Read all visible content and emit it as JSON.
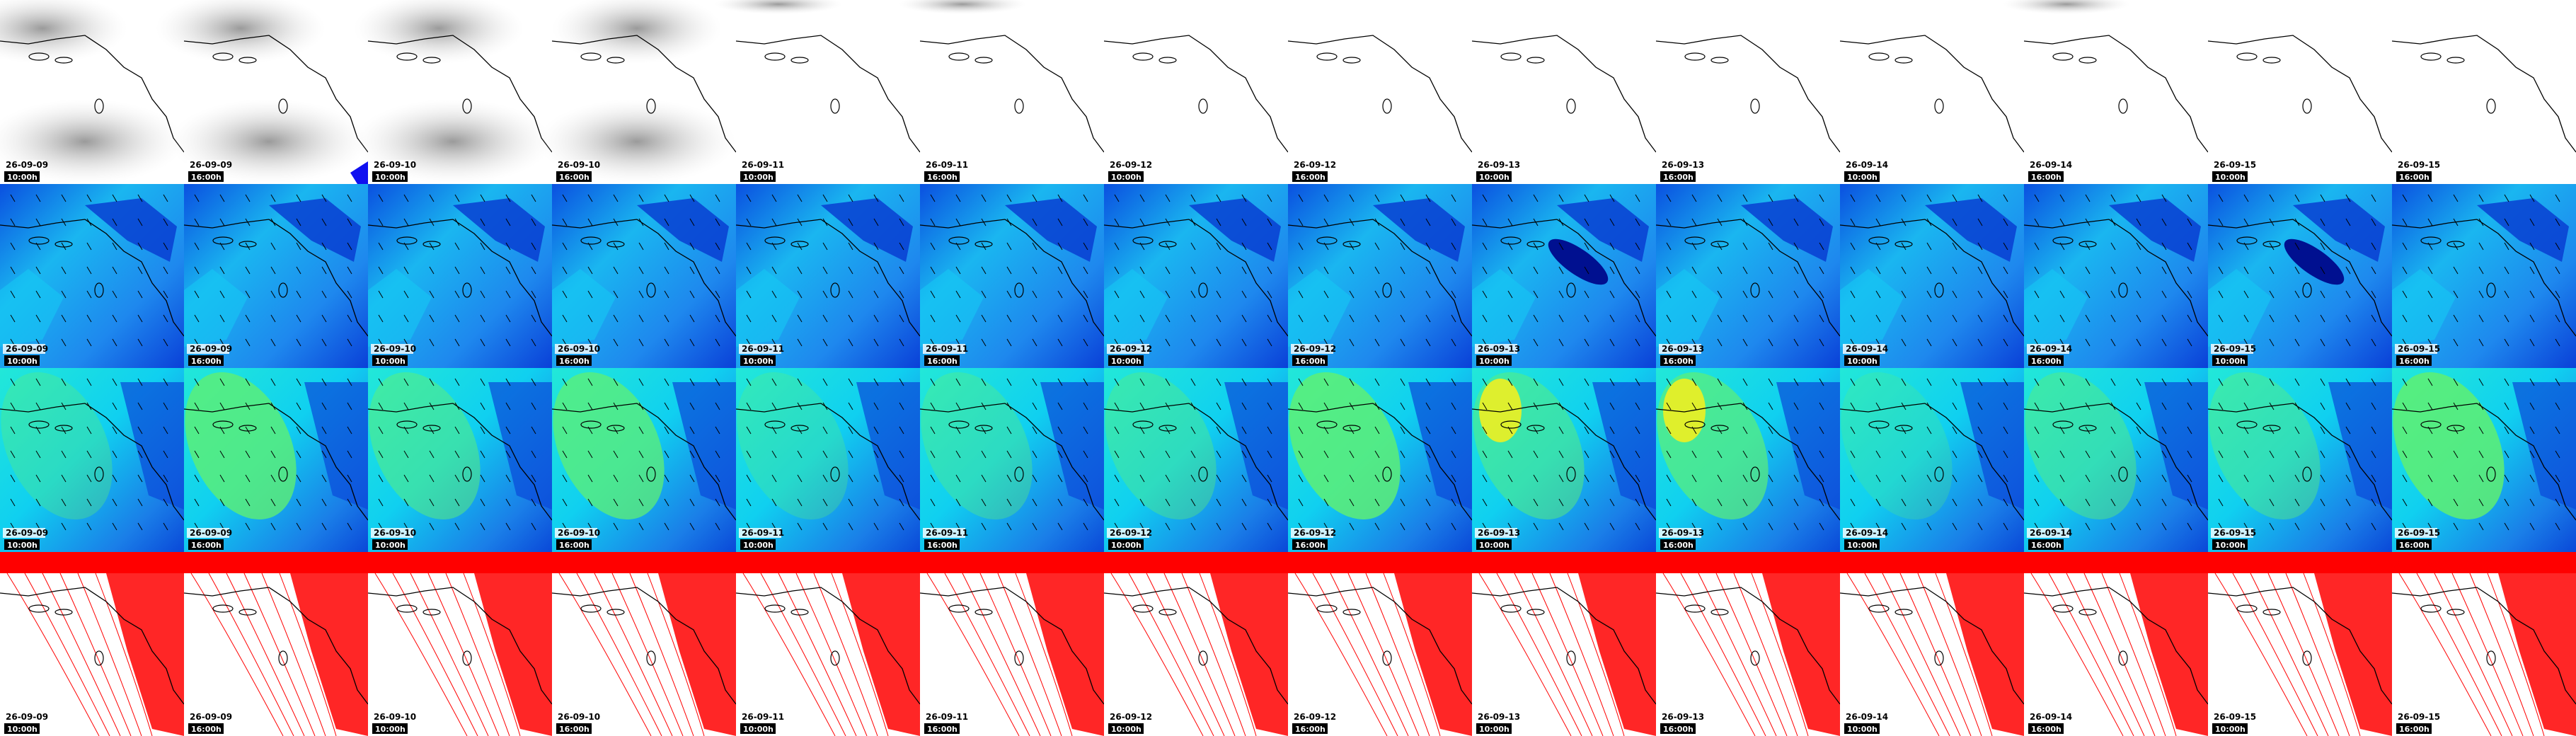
{
  "tiles": {
    "columns": [
      {
        "date": "26-09-09",
        "time": "10:00h"
      },
      {
        "date": "26-09-09",
        "time": "16:00h"
      },
      {
        "date": "26-09-10",
        "time": "10:00h"
      },
      {
        "date": "26-09-10",
        "time": "16:00h"
      },
      {
        "date": "26-09-11",
        "time": "10:00h"
      },
      {
        "date": "26-09-11",
        "time": "16:00h"
      },
      {
        "date": "26-09-12",
        "time": "10:00h"
      },
      {
        "date": "26-09-12",
        "time": "16:00h"
      },
      {
        "date": "26-09-13",
        "time": "10:00h"
      },
      {
        "date": "26-09-13",
        "time": "16:00h"
      },
      {
        "date": "26-09-14",
        "time": "10:00h"
      },
      {
        "date": "26-09-14",
        "time": "16:00h"
      },
      {
        "date": "26-09-15",
        "time": "10:00h"
      },
      {
        "date": "26-09-15",
        "time": "16:00h"
      }
    ]
  }
}
